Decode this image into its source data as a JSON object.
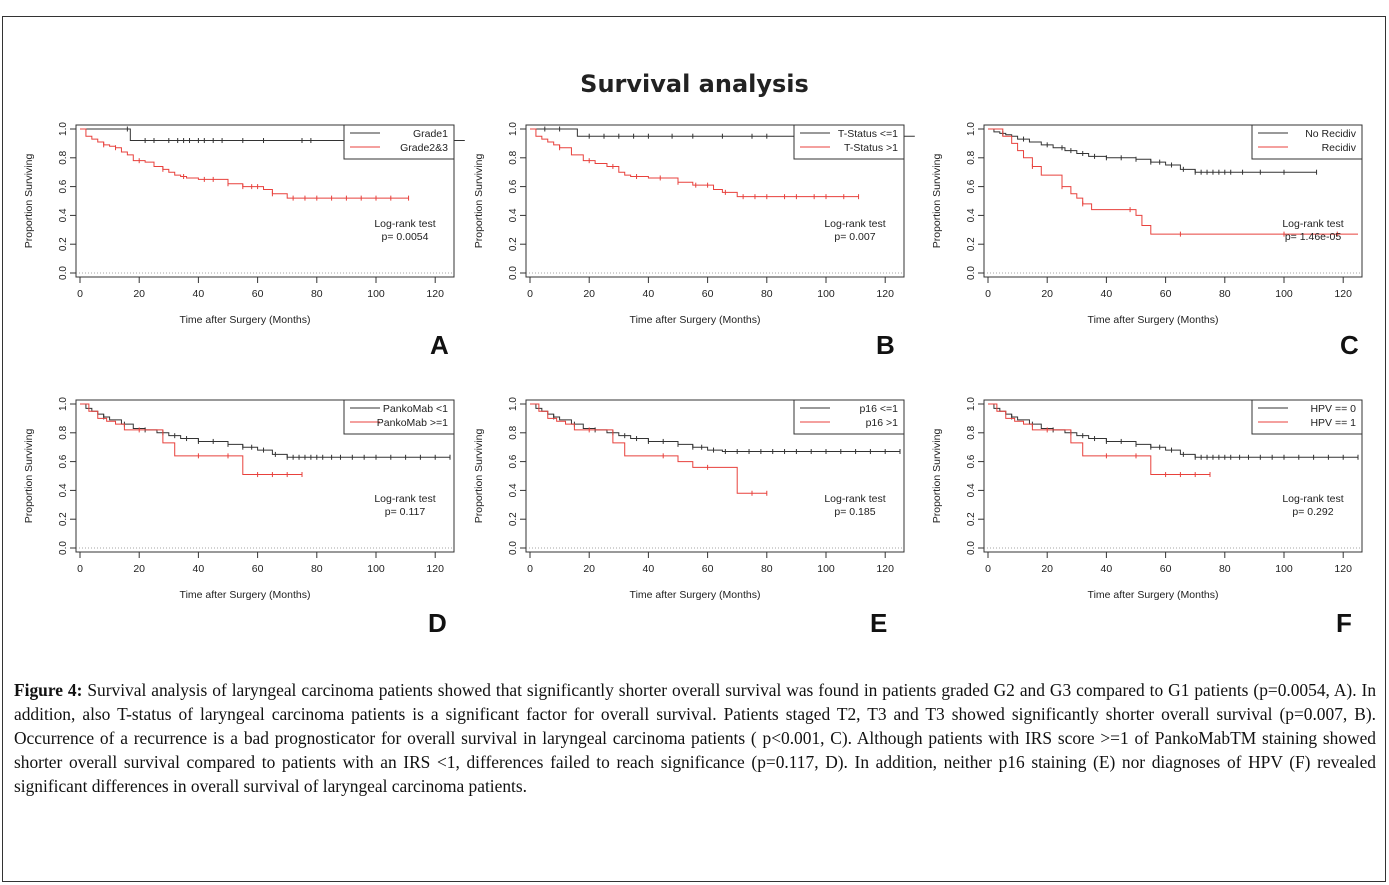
{
  "figure_title": "Survival analysis",
  "caption": {
    "label": "Figure 4:",
    "text": " Survival analysis of laryngeal carcinoma patients showed that significantly shorter overall survival was found in patients graded G2 and G3 compared to G1 patients (p=0.0054, A). In addition, also T-status of laryngeal carcinoma patients is a significant factor for overall survival. Patients staged T2, T3 and T3 showed significantly shorter overall survival (p=0.007, B). Occurrence of a recurrence is a bad prognosticator for overall survival in laryngeal carcinoma patients ( p<0.001, C). Although patients with IRS score >=1 of PankoMabTM staining showed shorter overall survival compared to patients with an IRS <1, differences failed to reach significance (p=0.117, D). In addition, neither p16 staining (E) nor diagnoses of HPV (F) revealed significant differences in overall survival of laryngeal carcinoma patients."
  },
  "colors": {
    "series1": "#333333",
    "series2": "#e8413c",
    "axis": "#333333"
  },
  "chart_data": [
    {
      "panel": "A",
      "type": "line",
      "xlabel": "Time after Surgery (Months)",
      "ylabel": "Proportion Surviving",
      "xlim": [
        0,
        120
      ],
      "ylim": [
        0,
        1
      ],
      "xticks": [
        "0",
        "20",
        "40",
        "60",
        "80",
        "100",
        "120"
      ],
      "yticks": [
        "0.0",
        "0.2",
        "0.4",
        "0.6",
        "0.8",
        "1.0"
      ],
      "legend_position": "top-right",
      "annotation": [
        "Log-rank test",
        "p= 0.0054"
      ],
      "series": [
        {
          "name": "Grade1",
          "x": [
            0,
            15,
            17,
            130
          ],
          "y": [
            1.0,
            1.0,
            0.92,
            0.92
          ],
          "censor_x": [
            16,
            22,
            25,
            30,
            33,
            35,
            37,
            40,
            42,
            45,
            48,
            55,
            62,
            75,
            78,
            95
          ]
        },
        {
          "name": "Grade2&3",
          "x": [
            0,
            2,
            4,
            6,
            8,
            10,
            12,
            14,
            16,
            18,
            22,
            25,
            28,
            30,
            32,
            34,
            36,
            40,
            50,
            55,
            62,
            65,
            70,
            111
          ],
          "y": [
            1.0,
            0.95,
            0.93,
            0.91,
            0.89,
            0.88,
            0.87,
            0.84,
            0.82,
            0.78,
            0.77,
            0.74,
            0.72,
            0.7,
            0.68,
            0.67,
            0.66,
            0.65,
            0.62,
            0.6,
            0.58,
            0.55,
            0.52,
            0.52
          ],
          "censor_x": [
            8,
            12,
            20,
            28,
            35,
            42,
            45,
            50,
            55,
            58,
            60,
            65,
            72,
            76,
            80,
            85,
            90,
            95,
            100,
            105,
            111
          ]
        }
      ]
    },
    {
      "panel": "B",
      "type": "line",
      "xlabel": "Time after Surgery (Months)",
      "ylabel": "Proportion Surviving",
      "xlim": [
        0,
        120
      ],
      "ylim": [
        0,
        1
      ],
      "xticks": [
        "0",
        "20",
        "40",
        "60",
        "80",
        "100",
        "120"
      ],
      "yticks": [
        "0.0",
        "0.2",
        "0.4",
        "0.6",
        "0.8",
        "1.0"
      ],
      "legend_position": "top-right",
      "annotation": [
        "Log-rank test",
        "p= 0.007"
      ],
      "series": [
        {
          "name": "T-Status <=1",
          "x": [
            0,
            14,
            16,
            130
          ],
          "y": [
            1.0,
            1.0,
            0.95,
            0.95
          ],
          "censor_x": [
            5,
            10,
            20,
            25,
            30,
            35,
            40,
            48,
            55,
            65,
            75,
            80,
            90
          ]
        },
        {
          "name": "T-Status >1",
          "x": [
            0,
            2,
            4,
            6,
            8,
            10,
            14,
            18,
            22,
            26,
            30,
            32,
            34,
            40,
            50,
            55,
            62,
            65,
            70,
            111
          ],
          "y": [
            1.0,
            0.95,
            0.93,
            0.91,
            0.89,
            0.87,
            0.82,
            0.78,
            0.76,
            0.74,
            0.7,
            0.68,
            0.67,
            0.66,
            0.63,
            0.61,
            0.58,
            0.56,
            0.53,
            0.53
          ],
          "censor_x": [
            10,
            20,
            28,
            36,
            44,
            50,
            56,
            60,
            66,
            72,
            76,
            80,
            86,
            90,
            96,
            100,
            106,
            111
          ]
        }
      ]
    },
    {
      "panel": "C",
      "type": "line",
      "xlabel": "Time after Surgery (Months)",
      "ylabel": "Proportion Surviving",
      "xlim": [
        0,
        120
      ],
      "ylim": [
        0,
        1
      ],
      "xticks": [
        "0",
        "20",
        "40",
        "60",
        "80",
        "100",
        "120"
      ],
      "yticks": [
        "0.0",
        "0.2",
        "0.4",
        "0.6",
        "0.8",
        "1.0"
      ],
      "legend_position": "top-right",
      "annotation": [
        "Log-rank test",
        "p= 1.46e-05"
      ],
      "series": [
        {
          "name": "No Recidiv",
          "x": [
            0,
            2,
            4,
            6,
            8,
            10,
            14,
            18,
            22,
            26,
            30,
            34,
            40,
            50,
            55,
            60,
            65,
            70,
            111
          ],
          "y": [
            1.0,
            0.98,
            0.97,
            0.96,
            0.95,
            0.93,
            0.91,
            0.89,
            0.87,
            0.85,
            0.83,
            0.81,
            0.8,
            0.79,
            0.77,
            0.75,
            0.72,
            0.7,
            0.7
          ],
          "censor_x": [
            5,
            12,
            20,
            25,
            28,
            32,
            36,
            40,
            45,
            50,
            55,
            58,
            62,
            66,
            70,
            72,
            74,
            76,
            78,
            80,
            82,
            86,
            92,
            100,
            111
          ]
        },
        {
          "name": "Recidiv",
          "x": [
            0,
            5,
            8,
            10,
            12,
            15,
            18,
            25,
            28,
            30,
            32,
            35,
            45,
            50,
            52,
            55,
            125
          ],
          "y": [
            1.0,
            0.95,
            0.9,
            0.85,
            0.8,
            0.74,
            0.68,
            0.6,
            0.55,
            0.52,
            0.48,
            0.44,
            0.44,
            0.4,
            0.33,
            0.27,
            0.27
          ],
          "censor_x": [
            15,
            25,
            32,
            48,
            65,
            100,
            118
          ]
        }
      ]
    },
    {
      "panel": "D",
      "type": "line",
      "xlabel": "Time after Surgery (Months)",
      "ylabel": "Proportion Surviving",
      "xlim": [
        0,
        120
      ],
      "ylim": [
        0,
        1
      ],
      "xticks": [
        "0",
        "20",
        "40",
        "60",
        "80",
        "100",
        "120"
      ],
      "yticks": [
        "0.0",
        "0.2",
        "0.4",
        "0.6",
        "0.8",
        "1.0"
      ],
      "legend_position": "top-right",
      "annotation": [
        "Log-rank test",
        "p= 0.117"
      ],
      "series": [
        {
          "name": "PankoMab <1",
          "x": [
            0,
            2,
            4,
            6,
            8,
            10,
            14,
            18,
            22,
            26,
            30,
            34,
            40,
            50,
            55,
            60,
            65,
            70,
            125
          ],
          "y": [
            1.0,
            0.97,
            0.95,
            0.93,
            0.91,
            0.89,
            0.86,
            0.83,
            0.82,
            0.8,
            0.78,
            0.76,
            0.74,
            0.72,
            0.7,
            0.68,
            0.65,
            0.63,
            0.63
          ],
          "censor_x": [
            8,
            15,
            22,
            28,
            32,
            36,
            40,
            45,
            50,
            55,
            58,
            62,
            66,
            70,
            72,
            74,
            76,
            78,
            80,
            82,
            85,
            88,
            92,
            96,
            100,
            105,
            110,
            115,
            120,
            125
          ]
        },
        {
          "name": "PankoMab >=1",
          "x": [
            0,
            3,
            6,
            9,
            12,
            15,
            25,
            28,
            32,
            35,
            45,
            50,
            55,
            75
          ],
          "y": [
            1.0,
            0.95,
            0.9,
            0.88,
            0.86,
            0.82,
            0.82,
            0.73,
            0.64,
            0.64,
            0.64,
            0.64,
            0.51,
            0.51
          ],
          "censor_x": [
            20,
            40,
            50,
            60,
            65,
            70,
            75
          ]
        }
      ]
    },
    {
      "panel": "E",
      "type": "line",
      "xlabel": "Time after Surgery (Months)",
      "ylabel": "Proportion Surviving",
      "xlim": [
        0,
        120
      ],
      "ylim": [
        0,
        1
      ],
      "xticks": [
        "0",
        "20",
        "40",
        "60",
        "80",
        "100",
        "120"
      ],
      "yticks": [
        "0.0",
        "0.2",
        "0.4",
        "0.6",
        "0.8",
        "1.0"
      ],
      "legend_position": "top-right",
      "annotation": [
        "Log-rank test",
        "p= 0.185"
      ],
      "series": [
        {
          "name": "p16 <=1",
          "x": [
            0,
            2,
            4,
            6,
            8,
            10,
            14,
            18,
            22,
            26,
            30,
            34,
            40,
            50,
            55,
            60,
            65,
            125
          ],
          "y": [
            1.0,
            0.97,
            0.95,
            0.93,
            0.91,
            0.89,
            0.86,
            0.83,
            0.82,
            0.8,
            0.78,
            0.76,
            0.74,
            0.72,
            0.7,
            0.68,
            0.67,
            0.67
          ],
          "censor_x": [
            8,
            15,
            22,
            28,
            32,
            36,
            40,
            45,
            50,
            55,
            58,
            62,
            66,
            70,
            74,
            78,
            82,
            86,
            90,
            95,
            100,
            105,
            110,
            115,
            120,
            125
          ]
        },
        {
          "name": "p16 >1",
          "x": [
            0,
            3,
            6,
            9,
            12,
            15,
            25,
            28,
            32,
            35,
            50,
            55,
            65,
            70,
            80
          ],
          "y": [
            1.0,
            0.95,
            0.9,
            0.88,
            0.86,
            0.82,
            0.82,
            0.73,
            0.64,
            0.64,
            0.6,
            0.56,
            0.56,
            0.38,
            0.38
          ],
          "censor_x": [
            20,
            45,
            60,
            75,
            80
          ]
        }
      ]
    },
    {
      "panel": "F",
      "type": "line",
      "xlabel": "Time after Surgery (Months)",
      "ylabel": "Proportion Surviving",
      "xlim": [
        0,
        120
      ],
      "ylim": [
        0,
        1
      ],
      "xticks": [
        "0",
        "20",
        "40",
        "60",
        "80",
        "100",
        "120"
      ],
      "yticks": [
        "0.0",
        "0.2",
        "0.4",
        "0.6",
        "0.8",
        "1.0"
      ],
      "legend_position": "top-right",
      "annotation": [
        "Log-rank test",
        "p= 0.292"
      ],
      "series": [
        {
          "name": "HPV == 0",
          "x": [
            0,
            2,
            4,
            6,
            8,
            10,
            14,
            18,
            22,
            26,
            30,
            34,
            40,
            50,
            55,
            60,
            65,
            70,
            125
          ],
          "y": [
            1.0,
            0.97,
            0.95,
            0.93,
            0.91,
            0.89,
            0.86,
            0.83,
            0.82,
            0.8,
            0.78,
            0.76,
            0.74,
            0.72,
            0.7,
            0.68,
            0.65,
            0.63,
            0.63
          ],
          "censor_x": [
            8,
            15,
            22,
            28,
            32,
            36,
            40,
            45,
            50,
            55,
            58,
            62,
            66,
            70,
            72,
            74,
            76,
            78,
            80,
            82,
            85,
            88,
            92,
            96,
            100,
            105,
            110,
            115,
            120,
            125
          ]
        },
        {
          "name": "HPV == 1",
          "x": [
            0,
            3,
            6,
            9,
            12,
            15,
            25,
            28,
            32,
            35,
            45,
            50,
            55,
            75
          ],
          "y": [
            1.0,
            0.95,
            0.9,
            0.88,
            0.86,
            0.82,
            0.82,
            0.73,
            0.64,
            0.64,
            0.64,
            0.64,
            0.51,
            0.51
          ],
          "censor_x": [
            20,
            40,
            50,
            60,
            65,
            70,
            75
          ]
        }
      ]
    }
  ]
}
